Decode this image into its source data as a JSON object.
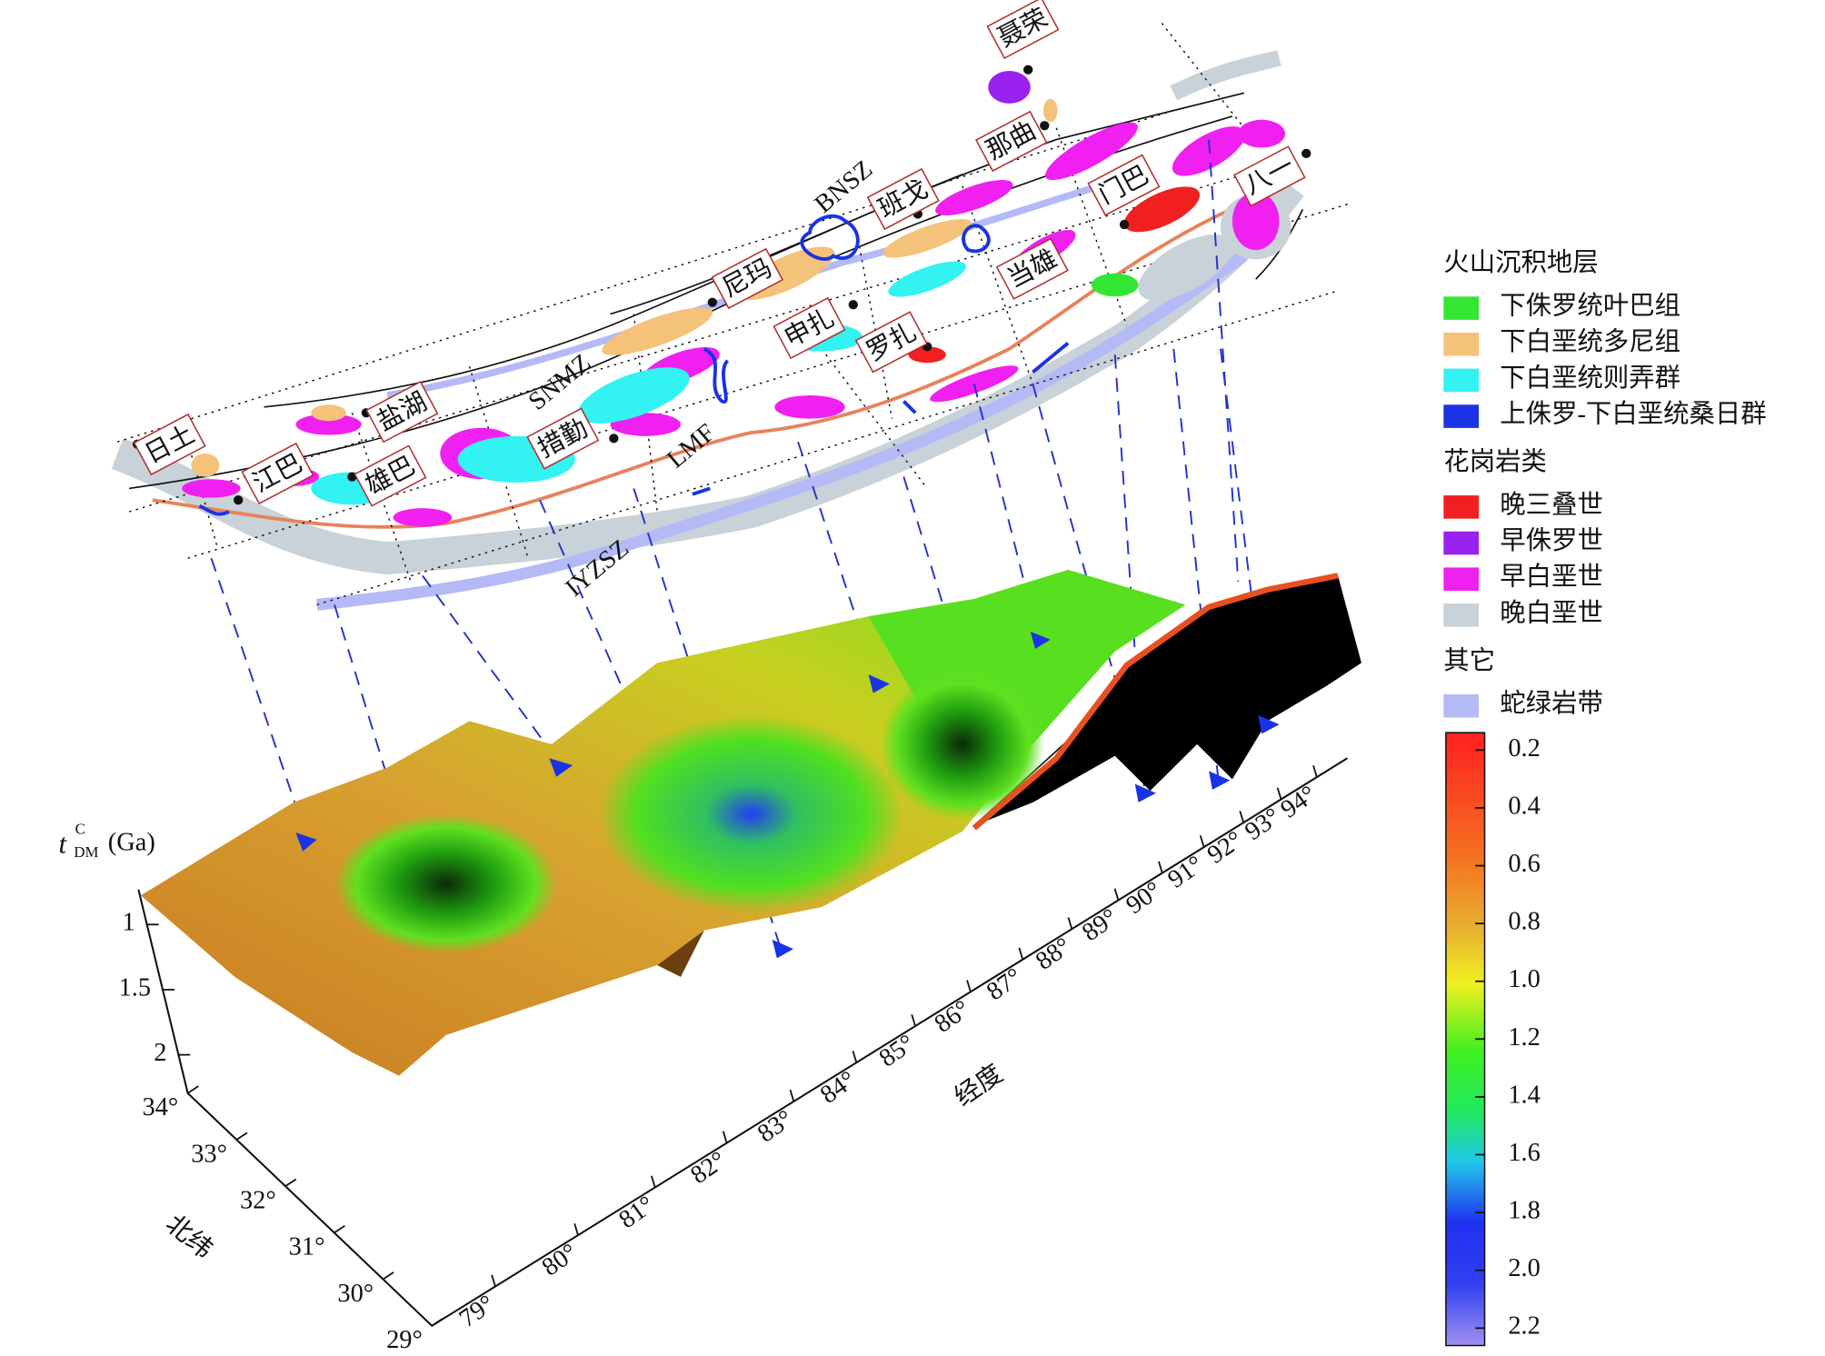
{
  "map": {
    "places": [
      {
        "label": "日土"
      },
      {
        "label": "江巴"
      },
      {
        "label": "盐湖"
      },
      {
        "label": "雄巴"
      },
      {
        "label": "措勤"
      },
      {
        "label": "尼玛"
      },
      {
        "label": "申扎"
      },
      {
        "label": "罗扎"
      },
      {
        "label": "班戈"
      },
      {
        "label": "当雄"
      },
      {
        "label": "那曲"
      },
      {
        "label": "聂荣"
      },
      {
        "label": "门巴"
      },
      {
        "label": "八一"
      }
    ],
    "faults": [
      "BNSZ",
      "SNMZ",
      "LMF",
      "IYZSZ"
    ]
  },
  "legend": {
    "groups": [
      {
        "title": "火山沉积地层",
        "items": [
          {
            "label": "下侏罗统叶巴组",
            "color": "#33e633"
          },
          {
            "label": "下白垩统多尼组",
            "color": "#f5c27a"
          },
          {
            "label": "下白垩统则弄群",
            "color": "#33f2f2"
          },
          {
            "label": "上侏罗-下白垩统桑日群",
            "color": "#1a33e6"
          }
        ]
      },
      {
        "title": "花岗岩类",
        "items": [
          {
            "label": "晚三叠世",
            "color": "#f02020"
          },
          {
            "label": "早侏罗世",
            "color": "#9922ee"
          },
          {
            "label": "早白垩世",
            "color": "#f020f0"
          },
          {
            "label": "晚白垩世",
            "color": "#c8d2d8"
          }
        ]
      },
      {
        "title": "其它",
        "items": [
          {
            "label": "蛇绿岩带",
            "color": "#b3baf5"
          }
        ]
      }
    ]
  },
  "colorbar": {
    "ticks": [
      0.2,
      0.4,
      0.6,
      0.8,
      {
        "value": 1,
        "label": "1.0"
      },
      1.2,
      1.4,
      1.6,
      1.8,
      {
        "value": 2,
        "label": "2.0"
      },
      2.2
    ]
  },
  "z_axis": {
    "symbol": "t",
    "superscript": "C",
    "subscript": "DM",
    "unit": "(Ga)",
    "ticks": [
      1,
      1.5,
      2
    ]
  },
  "longitude_axis": {
    "title": "经度",
    "ticks": [
      {
        "value": 79,
        "label": "79°"
      },
      {
        "value": 80,
        "label": "80°"
      },
      {
        "value": 81,
        "label": "81°"
      },
      {
        "value": 82,
        "label": "82°"
      },
      {
        "value": 83,
        "label": "83°"
      },
      {
        "value": 84,
        "label": "84°"
      },
      {
        "value": 85,
        "label": "85°"
      },
      {
        "value": 86,
        "label": "86°"
      },
      {
        "value": 87,
        "label": "87°"
      },
      {
        "value": 88,
        "label": "88°"
      },
      {
        "value": 89,
        "label": "89°"
      },
      {
        "value": 90,
        "label": "90°"
      },
      {
        "value": 91,
        "label": "91°"
      },
      {
        "value": 92,
        "label": "92°"
      },
      {
        "value": 93,
        "label": "93°"
      },
      {
        "value": 94,
        "label": "94°"
      }
    ]
  },
  "latitude_axis": {
    "title": "北纬",
    "ticks": [
      {
        "value": 34,
        "label": "34°"
      },
      {
        "value": 33,
        "label": "33°"
      },
      {
        "value": 32,
        "label": "32°"
      },
      {
        "value": 31,
        "label": "31°"
      },
      {
        "value": 30,
        "label": "30°"
      },
      {
        "value": 29,
        "label": "29°"
      }
    ]
  }
}
